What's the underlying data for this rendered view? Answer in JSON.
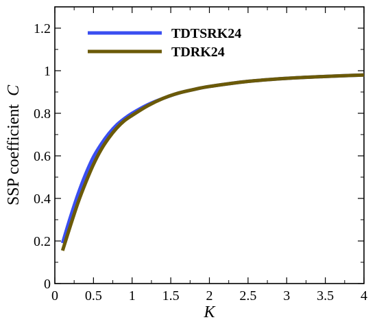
{
  "chart_data": {
    "type": "line",
    "title": "",
    "xlabel": "K",
    "ylabel": "SSP coefficient",
    "ylabel_symbol": "C",
    "xlim": [
      0,
      4
    ],
    "ylim": [
      0,
      1.3
    ],
    "xticks": [
      0,
      0.5,
      1,
      1.5,
      2,
      2.5,
      3,
      3.5,
      4
    ],
    "xtick_labels": [
      "0",
      "0.5",
      "1",
      "1.5",
      "2",
      "2.5",
      "3",
      "3.5",
      "4"
    ],
    "yticks": [
      0,
      0.2,
      0.4,
      0.6,
      0.8,
      1,
      1.2
    ],
    "ytick_labels": [
      "0",
      "0.2",
      "0.4",
      "0.6",
      "0.8",
      "1",
      "1.2"
    ],
    "grid": false,
    "legend_position": "top-left",
    "series": [
      {
        "name": "TDTSRK24",
        "color": "#3a4ef0",
        "x": [
          0.1,
          0.2,
          0.3,
          0.4,
          0.5,
          0.6,
          0.7,
          0.8,
          0.9,
          1.0,
          1.2,
          1.4,
          1.6,
          1.8,
          2.0,
          2.5,
          3.0,
          3.5,
          4.0
        ],
        "y": [
          0.19,
          0.31,
          0.42,
          0.515,
          0.595,
          0.655,
          0.705,
          0.745,
          0.775,
          0.8,
          0.84,
          0.87,
          0.895,
          0.912,
          0.926,
          0.95,
          0.964,
          0.973,
          0.98
        ]
      },
      {
        "name": "TDRK24",
        "color": "#6b5a08",
        "x": [
          0.1,
          0.2,
          0.3,
          0.4,
          0.5,
          0.6,
          0.7,
          0.8,
          0.9,
          1.0,
          1.2,
          1.4,
          1.6,
          1.8,
          2.0,
          2.5,
          3.0,
          3.5,
          4.0
        ],
        "y": [
          0.155,
          0.27,
          0.38,
          0.475,
          0.56,
          0.63,
          0.685,
          0.73,
          0.765,
          0.79,
          0.835,
          0.87,
          0.895,
          0.912,
          0.926,
          0.95,
          0.964,
          0.973,
          0.98
        ]
      }
    ]
  }
}
